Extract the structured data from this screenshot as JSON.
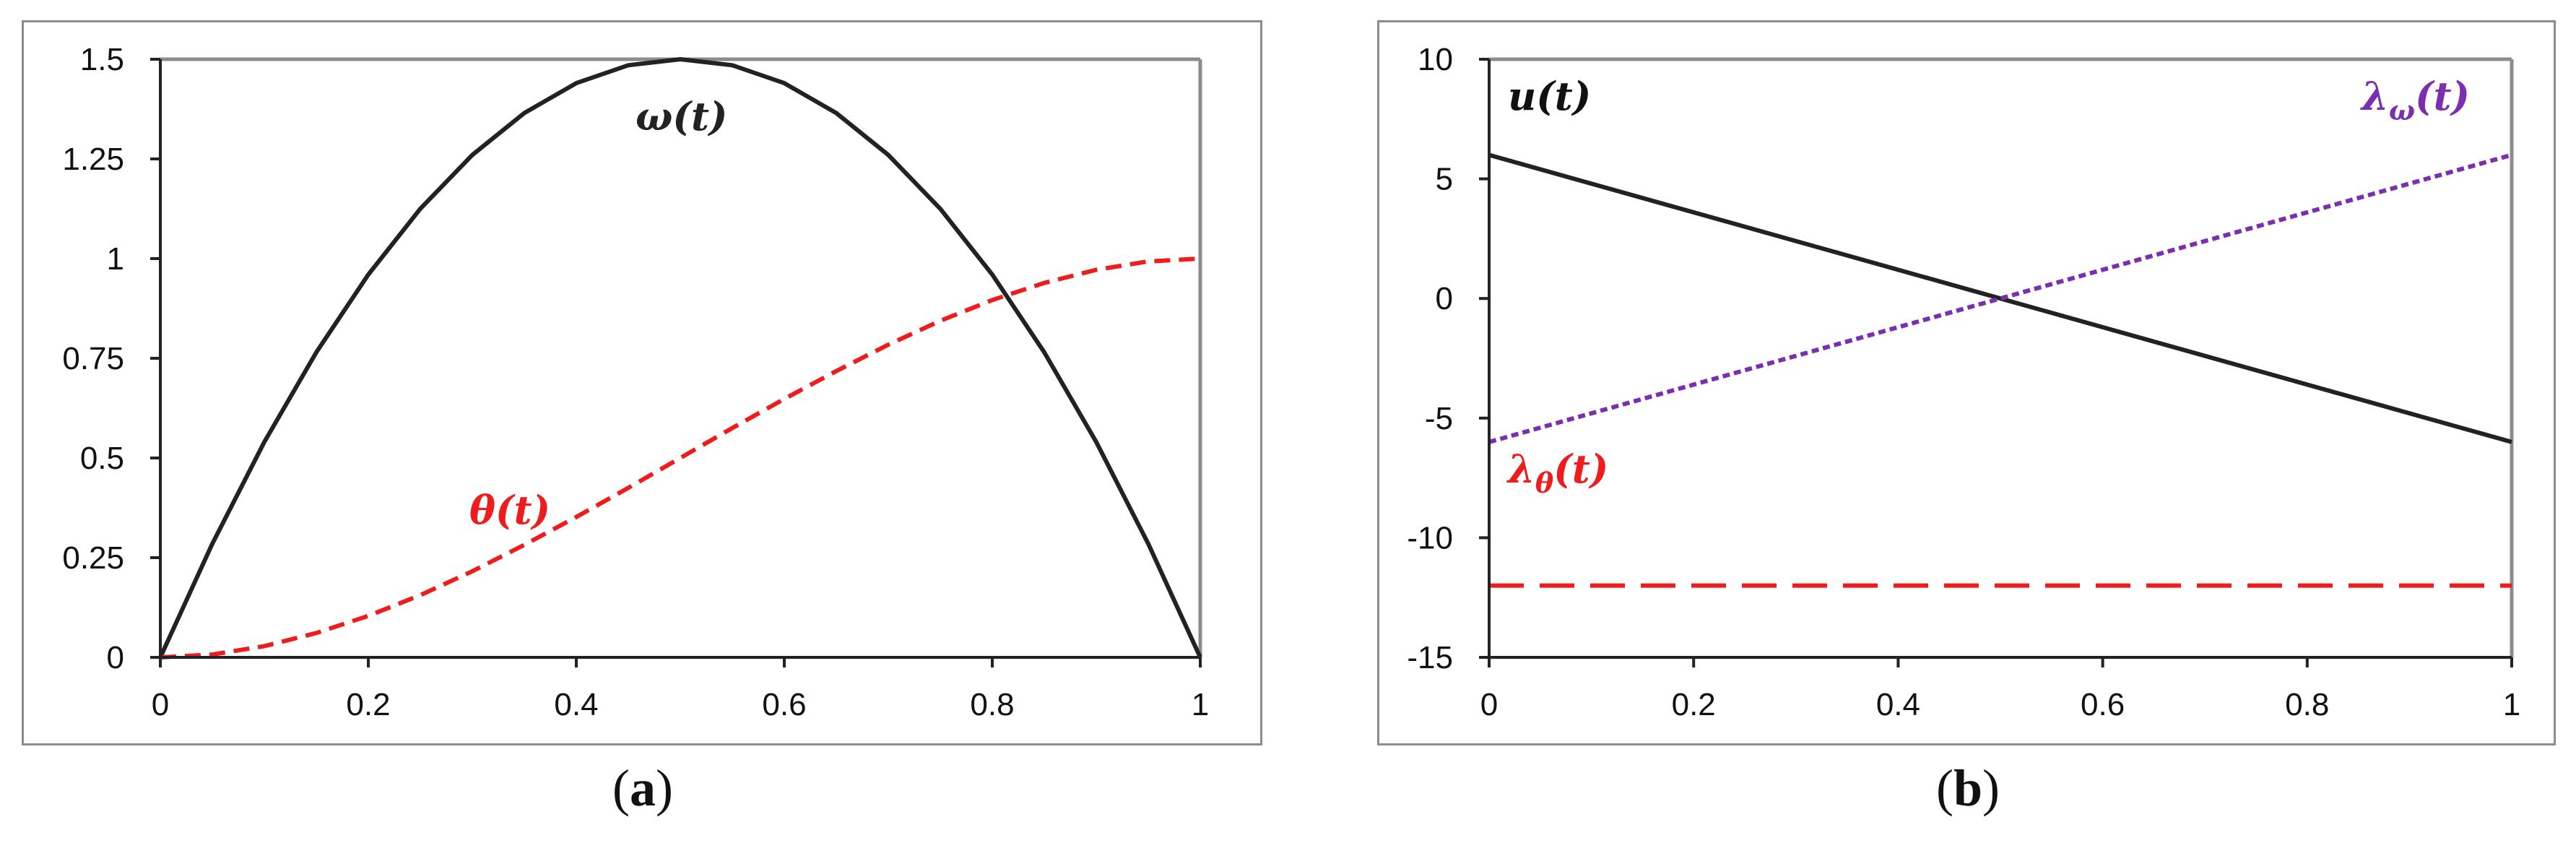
{
  "panels": [
    {
      "caption_open": "(",
      "caption_letter": "a",
      "caption_close": ")",
      "annotations": [
        {
          "text": "ω(t)",
          "color": "#222222",
          "series": 0
        },
        {
          "text": "θ(t)",
          "color": "#ee1c1c",
          "series": 1
        }
      ]
    },
    {
      "caption_open": "(",
      "caption_letter": "b",
      "caption_close": ")",
      "annotations": [
        {
          "text": "u(t)",
          "color": "#111111",
          "series": 0
        },
        {
          "text": "λω(t)",
          "color": "#7b2fb0",
          "series": 1
        },
        {
          "text": "λθ(t)",
          "color": "#ee1c1c",
          "series": 2
        }
      ]
    }
  ],
  "chart_data": [
    {
      "type": "line",
      "xlim": [
        0,
        1
      ],
      "ylim": [
        0,
        1.5
      ],
      "x_ticks": [
        "0",
        "0.2",
        "0.4",
        "0.6",
        "0.8",
        "1"
      ],
      "x_tick_values": [
        0,
        0.2,
        0.4,
        0.6,
        0.8,
        1
      ],
      "y_ticks": [
        "0",
        "0.25",
        "0.5",
        "0.75",
        "1",
        "1.25",
        "1.5"
      ],
      "y_tick_values": [
        0,
        0.25,
        0.5,
        0.75,
        1,
        1.25,
        1.5
      ],
      "grid": false,
      "series": [
        {
          "name": "ω(t)",
          "color": "#222222",
          "style": "solid",
          "x": [
            0,
            0.05,
            0.1,
            0.15,
            0.2,
            0.25,
            0.3,
            0.35,
            0.4,
            0.45,
            0.5,
            0.55,
            0.6,
            0.65,
            0.7,
            0.75,
            0.8,
            0.85,
            0.9,
            0.95,
            1
          ],
          "y": [
            0,
            0.285,
            0.54,
            0.765,
            0.96,
            1.125,
            1.26,
            1.365,
            1.44,
            1.485,
            1.5,
            1.485,
            1.44,
            1.365,
            1.26,
            1.125,
            0.96,
            0.765,
            0.54,
            0.285,
            0
          ]
        },
        {
          "name": "θ(t)",
          "color": "#ee1c1c",
          "style": "dashed",
          "x": [
            0,
            0.05,
            0.1,
            0.15,
            0.2,
            0.25,
            0.3,
            0.35,
            0.4,
            0.45,
            0.5,
            0.55,
            0.6,
            0.65,
            0.7,
            0.75,
            0.8,
            0.85,
            0.9,
            0.95,
            1
          ],
          "y": [
            0,
            0.007,
            0.028,
            0.061,
            0.104,
            0.156,
            0.216,
            0.282,
            0.352,
            0.425,
            0.5,
            0.575,
            0.648,
            0.718,
            0.784,
            0.844,
            0.896,
            0.939,
            0.972,
            0.993,
            1
          ]
        }
      ]
    },
    {
      "type": "line",
      "xlim": [
        0,
        1
      ],
      "ylim": [
        -15,
        10
      ],
      "x_ticks": [
        "0",
        "0.2",
        "0.4",
        "0.6",
        "0.8",
        "1"
      ],
      "x_tick_values": [
        0,
        0.2,
        0.4,
        0.6,
        0.8,
        1
      ],
      "y_ticks": [
        "-15",
        "-10",
        "-5",
        "0",
        "5",
        "10"
      ],
      "y_tick_values": [
        -15,
        -10,
        -5,
        0,
        5,
        10
      ],
      "grid": false,
      "series": [
        {
          "name": "u(t)",
          "color": "#222222",
          "style": "solid",
          "x": [
            0,
            1
          ],
          "y": [
            6,
            -6
          ]
        },
        {
          "name": "λω(t)",
          "color": "#7b2fb0",
          "style": "dotted",
          "x": [
            0,
            1
          ],
          "y": [
            -6,
            6
          ]
        },
        {
          "name": "λθ(t)",
          "color": "#ee1c1c",
          "style": "longdash",
          "x": [
            0,
            1
          ],
          "y": [
            -12,
            -12
          ]
        }
      ]
    }
  ]
}
